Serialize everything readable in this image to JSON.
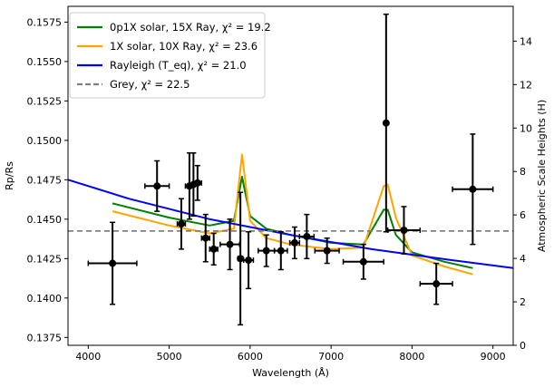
{
  "chart_data": {
    "type": "line",
    "title": "",
    "xlabel": "Wavelength (Å)",
    "ylabel": "Rp/Rs",
    "ylabel_right": "Atmospheric Scale Heights (H)",
    "xlim": [
      3750,
      9250
    ],
    "ylim": [
      0.137,
      0.1585
    ],
    "ylim_right": [
      0,
      15.6
    ],
    "x_ticks": [
      4000,
      5000,
      6000,
      7000,
      8000,
      9000
    ],
    "y_ticks": [
      0.1375,
      0.14,
      0.1425,
      0.145,
      0.1475,
      0.15,
      0.1525,
      0.155,
      0.1575
    ],
    "y_tick_labels": [
      "0.1375",
      "0.1400",
      "0.1425",
      "0.1450",
      "0.1475",
      "0.1500",
      "0.1525",
      "0.1550",
      "0.1575"
    ],
    "y_ticks_right": [
      0,
      2,
      4,
      6,
      8,
      10,
      12,
      14
    ],
    "legend": [
      {
        "label": "0p1X solar, 15X Ray, χ² = 19.2",
        "color": "#008000",
        "style": "solid"
      },
      {
        "label": "1X solar, 10X Ray, χ² = 23.6",
        "color": "#FFA500",
        "style": "solid"
      },
      {
        "label": "Rayleigh (T_eq), χ² = 21.0",
        "color": "#0000FF",
        "style": "solid"
      },
      {
        "label": "Grey, χ² = 22.5",
        "color": "#808080",
        "style": "dashed"
      }
    ],
    "series": [
      {
        "name": "0p1X solar, 15X Ray",
        "color": "#008000",
        "x": [
          4300,
          5000,
          5500,
          5800,
          5900,
          6000,
          6200,
          6500,
          7000,
          7400,
          7650,
          7700,
          7800,
          8000,
          8400,
          8750
        ],
        "y": [
          0.146,
          0.1451,
          0.1446,
          0.1449,
          0.1477,
          0.1452,
          0.1444,
          0.144,
          0.1435,
          0.1434,
          0.1456,
          0.1456,
          0.144,
          0.1429,
          0.1423,
          0.1419
        ]
      },
      {
        "name": "1X solar, 10X Ray",
        "color": "#FFA500",
        "x": [
          4300,
          5000,
          5500,
          5800,
          5900,
          6000,
          6200,
          6500,
          7000,
          7400,
          7650,
          7700,
          7800,
          8000,
          8400,
          8750
        ],
        "y": [
          0.1455,
          0.1446,
          0.1441,
          0.1444,
          0.1491,
          0.1449,
          0.1438,
          0.1434,
          0.1431,
          0.1432,
          0.1471,
          0.1472,
          0.1451,
          0.1427,
          0.142,
          0.1415
        ]
      },
      {
        "name": "Rayleigh (T_eq)",
        "color": "#0000FF",
        "x": [
          3750,
          4500,
          5500,
          6500,
          7500,
          8500,
          9250
        ],
        "y": [
          0.1475,
          0.1463,
          0.145,
          0.144,
          0.1431,
          0.1424,
          0.1419
        ]
      },
      {
        "name": "Grey",
        "color": "#808080",
        "x": [
          3750,
          9250
        ],
        "y": [
          0.14425,
          0.14425
        ]
      }
    ],
    "points": [
      {
        "x": 4300,
        "y": 0.1422,
        "xerr": 300,
        "yerr": 0.0026
      },
      {
        "x": 4850,
        "y": 0.1471,
        "xerr": 150,
        "yerr": 0.0016
      },
      {
        "x": 5150,
        "y": 0.1447,
        "xerr": 50,
        "yerr": 0.0016
      },
      {
        "x": 5250,
        "y": 0.1471,
        "xerr": 50,
        "yerr": 0.0021
      },
      {
        "x": 5300,
        "y": 0.1472,
        "xerr": 50,
        "yerr": 0.002
      },
      {
        "x": 5350,
        "y": 0.1473,
        "xerr": 50,
        "yerr": 0.0011
      },
      {
        "x": 5450,
        "y": 0.1438,
        "xerr": 50,
        "yerr": 0.0015
      },
      {
        "x": 5550,
        "y": 0.1431,
        "xerr": 50,
        "yerr": 0.001
      },
      {
        "x": 5750,
        "y": 0.1434,
        "xerr": 120,
        "yerr": 0.0016
      },
      {
        "x": 5880,
        "y": 0.1425,
        "xerr": 30,
        "yerr": 0.0042
      },
      {
        "x": 5980,
        "y": 0.1424,
        "xerr": 60,
        "yerr": 0.0018
      },
      {
        "x": 6200,
        "y": 0.143,
        "xerr": 100,
        "yerr": 0.001
      },
      {
        "x": 6380,
        "y": 0.143,
        "xerr": 80,
        "yerr": 0.0012
      },
      {
        "x": 6550,
        "y": 0.1435,
        "xerr": 60,
        "yerr": 0.001
      },
      {
        "x": 6700,
        "y": 0.1439,
        "xerr": 90,
        "yerr": 0.0014
      },
      {
        "x": 6950,
        "y": 0.143,
        "xerr": 150,
        "yerr": 0.0008
      },
      {
        "x": 7400,
        "y": 0.1423,
        "xerr": 250,
        "yerr": 0.0011
      },
      {
        "x": 7680,
        "y": 0.1511,
        "xerr": 20,
        "yerr": 0.0069
      },
      {
        "x": 7900,
        "y": 0.1443,
        "xerr": 200,
        "yerr": 0.0015
      },
      {
        "x": 8300,
        "y": 0.1409,
        "xerr": 200,
        "yerr": 0.0013
      },
      {
        "x": 8750,
        "y": 0.1469,
        "xerr": 250,
        "yerr": 0.0035
      }
    ]
  }
}
